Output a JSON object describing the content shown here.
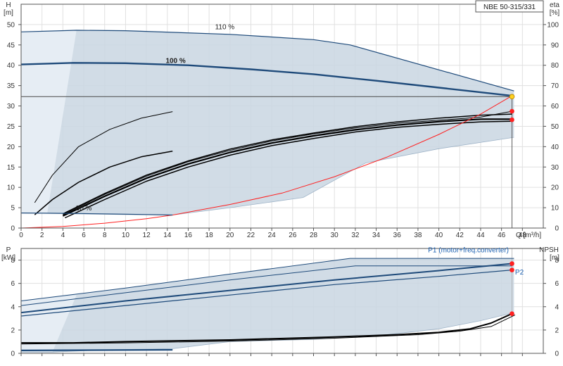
{
  "title": "NBE 50-315/331",
  "colors": {
    "band_fill": "#c9d6e2",
    "band_edge": "#1e4a7a",
    "duty_curve": "#1e4a7a",
    "eta_curve": "#000000",
    "system_curve": "#ff2020",
    "point": "#ff2020",
    "operating_point": "#ffd21f",
    "grid": "#e0e0e0",
    "frame": "#555555",
    "p1_label": "#1a5fb0"
  },
  "chart_data": [
    {
      "type": "line",
      "panel": "head-efficiency",
      "x_label": "Q [m³/h]",
      "y_left_label": [
        "H",
        "[m]"
      ],
      "y_right_label": [
        "eta",
        "[%]"
      ],
      "xlim": [
        0,
        50
      ],
      "ylim_left": [
        0,
        55
      ],
      "ylim_right": [
        0,
        110
      ],
      "x_ticks": [
        0,
        2,
        4,
        6,
        8,
        10,
        12,
        14,
        16,
        18,
        20,
        22,
        24,
        26,
        28,
        30,
        32,
        34,
        36,
        38,
        40,
        42,
        44,
        46,
        48
      ],
      "y_left_ticks": [
        0,
        5,
        10,
        15,
        20,
        25,
        30,
        35,
        40,
        45,
        50
      ],
      "y_right_ticks": [
        0,
        10,
        20,
        30,
        40,
        50,
        60,
        70,
        80,
        90,
        100
      ],
      "grid": true,
      "band": {
        "upper": [
          [
            0,
            48.2
          ],
          [
            5.3,
            48.6
          ],
          [
            10,
            48.5
          ],
          [
            20,
            47.6
          ],
          [
            28,
            46.3
          ],
          [
            31.5,
            45
          ],
          [
            47.2,
            33.7
          ]
        ],
        "lower": [
          [
            47.2,
            22.3
          ],
          [
            40,
            19.5
          ],
          [
            33,
            16
          ],
          [
            27,
            7.5
          ],
          [
            20,
            5
          ],
          [
            14.5,
            3.2
          ],
          [
            10,
            3.3
          ],
          [
            5,
            3.5
          ],
          [
            0,
            3.7
          ]
        ],
        "shade_left": [
          [
            0,
            3.7
          ],
          [
            2.5,
            3.6
          ],
          [
            5.3,
            48.6
          ],
          [
            0,
            48.2
          ]
        ]
      },
      "head_curves": [
        {
          "label": "110 %",
          "label_at": [
            19.5,
            49.5
          ],
          "bold": false,
          "points": [
            [
              0,
              48.2
            ],
            [
              5.3,
              48.6
            ],
            [
              10,
              48.5
            ],
            [
              20,
              47.6
            ],
            [
              28,
              46.3
            ],
            [
              31.5,
              45
            ],
            [
              47.2,
              33.7
            ]
          ]
        },
        {
          "label": "100 %",
          "label_at": [
            14.8,
            41.2
          ],
          "bold": true,
          "points": [
            [
              0,
              40.2
            ],
            [
              5,
              40.6
            ],
            [
              10,
              40.5
            ],
            [
              16,
              40
            ],
            [
              22,
              39
            ],
            [
              28,
              37.8
            ],
            [
              34,
              36.2
            ],
            [
              40,
              34.5
            ],
            [
              47,
              32.5
            ]
          ]
        },
        {
          "label": "30 %",
          "label_at": [
            6,
            4.9
          ],
          "bold": false,
          "points": [
            [
              0,
              3.7
            ],
            [
              5,
              3.6
            ],
            [
              10,
              3.4
            ],
            [
              14.5,
              3.2
            ]
          ]
        }
      ],
      "efficiency_curves": [
        {
          "points": [
            [
              1.3,
              12.5
            ],
            [
              3,
              26
            ],
            [
              5.5,
              40
            ],
            [
              8.5,
              48.5
            ],
            [
              11.5,
              54
            ],
            [
              14.5,
              57.2
            ]
          ],
          "width": 1
        },
        {
          "points": [
            [
              1.3,
              6.5
            ],
            [
              3,
              14
            ],
            [
              5.5,
              22.5
            ],
            [
              8.5,
              30
            ],
            [
              11.5,
              35
            ],
            [
              14.5,
              37.8
            ]
          ],
          "width": 1.5
        },
        {
          "points": [
            [
              4,
              7
            ],
            [
              8,
              17
            ],
            [
              12,
              26
            ],
            [
              16,
              33
            ],
            [
              20,
              38.8
            ],
            [
              24,
              43.3
            ],
            [
              28,
              46.7
            ],
            [
              32,
              49.8
            ],
            [
              36,
              52.2
            ],
            [
              40,
              54
            ],
            [
              44,
              55.5
            ],
            [
              47,
              56
            ]
          ],
          "width": 1.5
        },
        {
          "points": [
            [
              4,
              6
            ],
            [
              8,
              15.6
            ],
            [
              12,
              24.5
            ],
            [
              16,
              31.5
            ],
            [
              20,
              37.2
            ],
            [
              24,
              41.8
            ],
            [
              28,
              45.3
            ],
            [
              32,
              48.3
            ],
            [
              36,
              50.6
            ],
            [
              40,
              52.3
            ],
            [
              44,
              53.5
            ],
            [
              47,
              53.5
            ]
          ],
          "width": 2.2
        },
        {
          "points": [
            [
              4.2,
              5
            ],
            [
              8,
              14
            ],
            [
              12,
              23
            ],
            [
              16,
              30
            ],
            [
              20,
              35.8
            ],
            [
              24,
              40.5
            ],
            [
              28,
              44
            ],
            [
              32,
              47.2
            ],
            [
              36,
              49.5
            ],
            [
              40,
              51
            ],
            [
              44,
              52.2
            ],
            [
              47,
              52.5
            ]
          ],
          "width": 1.5
        },
        {
          "points": [
            [
              4,
              6.5
            ],
            [
              8,
              16.5
            ],
            [
              12,
              25.5
            ],
            [
              16,
              32.6
            ],
            [
              20,
              38.2
            ],
            [
              24,
              42.8
            ],
            [
              28,
              46.3
            ],
            [
              32,
              49.2
            ],
            [
              36,
              51.5
            ],
            [
              40,
              53
            ],
            [
              44,
              54.5
            ],
            [
              47,
              57.4
            ]
          ],
          "width": 1
        }
      ],
      "system_curve": [
        [
          0,
          0
        ],
        [
          4,
          0.4
        ],
        [
          8,
          1.2
        ],
        [
          12,
          2.3
        ],
        [
          14.5,
          3.2
        ],
        [
          20,
          5.8
        ],
        [
          25,
          8.6
        ],
        [
          30,
          12.6
        ],
        [
          35,
          17.4
        ],
        [
          40,
          23
        ],
        [
          44,
          28
        ],
        [
          47,
          32.5
        ]
      ],
      "duty_q": 47,
      "duty_head": 32.3,
      "points": [
        {
          "x": 47,
          "y_left": 32.3,
          "kind": "operating"
        },
        {
          "x": 47,
          "y_right": 57.4,
          "kind": "marker"
        },
        {
          "x": 47,
          "y_right": 53.2,
          "kind": "marker"
        }
      ]
    },
    {
      "type": "line",
      "panel": "power-npsh",
      "y_left_label": [
        "P",
        "[kW]"
      ],
      "y_right_label": [
        "NPSH",
        "[m]"
      ],
      "xlim": [
        0,
        50
      ],
      "ylim_left": [
        0,
        9
      ],
      "ylim_right": [
        0,
        9
      ],
      "y_left_ticks": [
        0,
        2,
        4,
        6,
        8
      ],
      "y_right_ticks": [
        0,
        2,
        4,
        6,
        8
      ],
      "grid": true,
      "legend": [
        {
          "text": "P1 (motor+freq.converter)",
          "anchor_x": 46.7,
          "anchor_y": 8.8
        },
        {
          "text": "P2",
          "anchor_x": 47.3,
          "anchor_y": 7.0
        }
      ],
      "band": {
        "upper": [
          [
            0,
            4.5
          ],
          [
            10,
            5.6
          ],
          [
            20,
            6.8
          ],
          [
            31.5,
            8.15
          ],
          [
            47.2,
            8.15
          ]
        ],
        "lower": [
          [
            47.2,
            3.5
          ],
          [
            44,
            2.8
          ],
          [
            40,
            2.1
          ],
          [
            34,
            1.5
          ],
          [
            28,
            1.2
          ],
          [
            20,
            1.0
          ],
          [
            14.5,
            0.4
          ],
          [
            8,
            0.3
          ],
          [
            3,
            0.1
          ],
          [
            0,
            0.1
          ]
        ],
        "shade_left": [
          [
            0,
            0.1
          ],
          [
            3,
            0.1
          ],
          [
            5.3,
            5.0
          ],
          [
            0,
            4.5
          ]
        ]
      },
      "power_curves": [
        {
          "points": [
            [
              0,
              4.5
            ],
            [
              10,
              5.6
            ],
            [
              20,
              6.8
            ],
            [
              31.5,
              8.15
            ],
            [
              47.2,
              8.15
            ]
          ],
          "width": 1
        },
        {
          "points": [
            [
              0,
              4.1
            ],
            [
              10,
              5.2
            ],
            [
              20,
              6.3
            ],
            [
              32,
              7.5
            ],
            [
              47,
              7.5
            ]
          ],
          "width": 1
        },
        {
          "points": [
            [
              0,
              3.5
            ],
            [
              10,
              4.5
            ],
            [
              20,
              5.4
            ],
            [
              30,
              6.3
            ],
            [
              40,
              7.1
            ],
            [
              47,
              7.7
            ]
          ],
          "width": 2
        },
        {
          "points": [
            [
              0,
              3.2
            ],
            [
              10,
              4.1
            ],
            [
              20,
              5.0
            ],
            [
              30,
              5.9
            ],
            [
              40,
              6.6
            ],
            [
              47,
              7.15
            ]
          ],
          "width": 1.2
        }
      ],
      "npsh_curves": [
        {
          "points": [
            [
              0,
              0.9
            ],
            [
              5,
              0.9
            ],
            [
              10,
              1.0
            ],
            [
              20,
              1.15
            ],
            [
              30,
              1.4
            ],
            [
              36,
              1.6
            ],
            [
              40,
              1.8
            ],
            [
              43,
              2.1
            ],
            [
              45,
              2.6
            ],
            [
              47,
              3.4
            ]
          ],
          "width": 2
        },
        {
          "points": [
            [
              0,
              0.8
            ],
            [
              10,
              0.9
            ],
            [
              20,
              1.05
            ],
            [
              30,
              1.3
            ],
            [
              38,
              1.6
            ],
            [
              42,
              1.9
            ],
            [
              45,
              2.3
            ],
            [
              47.3,
              3.3
            ]
          ],
          "width": 1
        }
      ],
      "low_curves": [
        {
          "points": [
            [
              0,
              0.25
            ],
            [
              14.5,
              0.3
            ]
          ],
          "width": 2.2
        }
      ],
      "points": [
        {
          "x": 47,
          "y_left": 7.7,
          "kind": "marker"
        },
        {
          "x": 47,
          "y_left": 7.15,
          "kind": "marker"
        },
        {
          "x": 47,
          "y_right": 3.4,
          "kind": "marker"
        }
      ]
    }
  ]
}
